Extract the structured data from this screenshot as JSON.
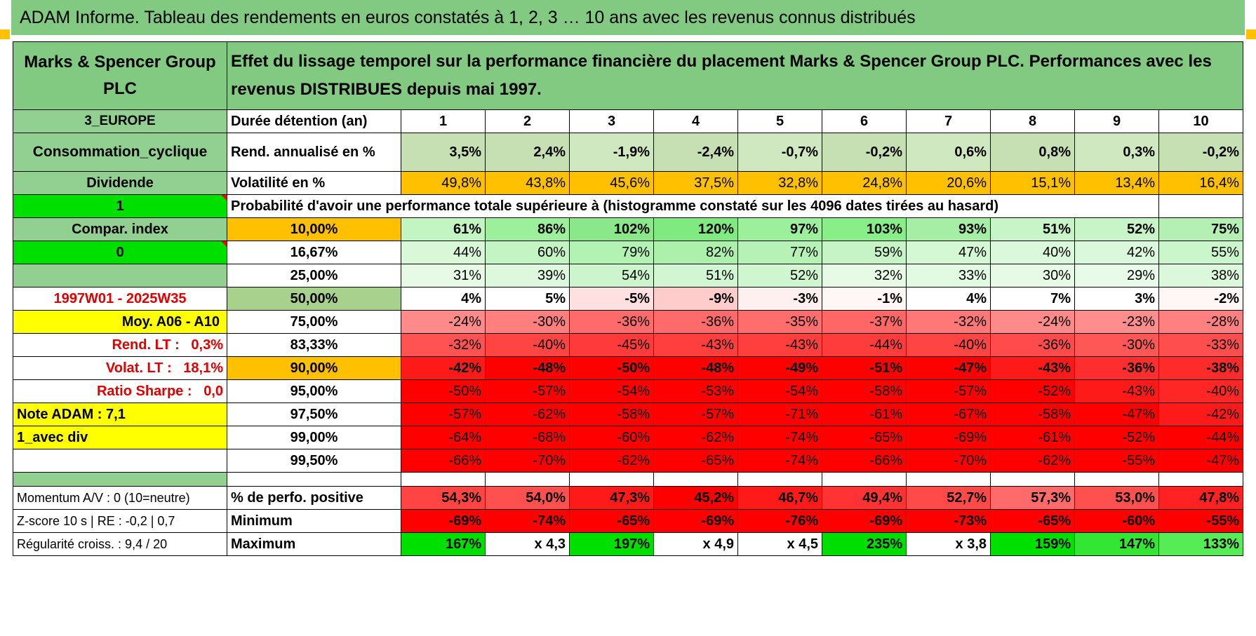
{
  "title": "ADAM Informe. Tableau des rendements en euros constatés à 1, 2, 3 … 10 ans avec les revenus connus distribués",
  "colors": {
    "header_green": "#82c982",
    "bright_green": "#00e000",
    "yellow": "#ffff00",
    "orange": "#ffc000",
    "red_text": "#e00000"
  },
  "header": {
    "company": "Marks & Spencer Group PLC",
    "description": "Effet du lissage temporel sur la performance financière du placement Marks & Spencer Group PLC. Performances avec les revenus DISTRIBUES depuis mai 1997."
  },
  "side": {
    "region": "3_EUROPE",
    "sector": "Consommation_cyclique",
    "income_type": "Dividende",
    "flag1": "1",
    "compare_index": "Compar. index",
    "flag2": "0",
    "period": "1997W01 - 2025W35",
    "moy": "Moy. A06 - A10",
    "rend_lt_label": "Rend. LT :",
    "rend_lt_value": "0,3%",
    "volat_lt_label": "Volat. LT :",
    "volat_lt_value": "18,1%",
    "sharpe_label": "Ratio Sharpe :",
    "sharpe_value": "0,0",
    "note": "Note ADAM : 7,1",
    "avec_div": "1_avec div",
    "momentum": "Momentum A/V : 0 (10=neutre)",
    "zscore": "Z-score 10 s | RE : -0,2 | 0,7",
    "regularite": "Régularité croiss. : 9,4 / 20"
  },
  "metrics": {
    "duration_label": "Durée détention (an)",
    "years": [
      "1",
      "2",
      "3",
      "4",
      "5",
      "6",
      "7",
      "8",
      "9",
      "10"
    ],
    "rend_label": "Rend. annualisé en %",
    "rend": [
      "3,5%",
      "2,4%",
      "-1,9%",
      "-2,4%",
      "-0,7%",
      "-0,2%",
      "0,6%",
      "0,8%",
      "0,3%",
      "-0,2%"
    ],
    "vol_label": "Volatilité en %",
    "vol": [
      "49,8%",
      "43,8%",
      "45,6%",
      "37,5%",
      "32,8%",
      "24,8%",
      "20,6%",
      "15,1%",
      "13,4%",
      "16,4%"
    ],
    "prob_label": "Probabilité d'avoir une performance totale supérieure à (histogramme constaté sur les 4096 dates tirées au hasard)"
  },
  "probabilities": [
    {
      "level": "10,00%",
      "values": [
        "61%",
        "86%",
        "102%",
        "120%",
        "97%",
        "103%",
        "93%",
        "51%",
        "52%",
        "75%"
      ]
    },
    {
      "level": "16,67%",
      "values": [
        "44%",
        "60%",
        "79%",
        "82%",
        "77%",
        "59%",
        "47%",
        "40%",
        "42%",
        "55%"
      ]
    },
    {
      "level": "25,00%",
      "values": [
        "31%",
        "39%",
        "54%",
        "51%",
        "52%",
        "32%",
        "33%",
        "30%",
        "29%",
        "38%"
      ]
    },
    {
      "level": "50,00%",
      "values": [
        "4%",
        "5%",
        "-5%",
        "-9%",
        "-3%",
        "-1%",
        "4%",
        "7%",
        "3%",
        "-2%"
      ]
    },
    {
      "level": "75,00%",
      "values": [
        "-24%",
        "-30%",
        "-36%",
        "-36%",
        "-35%",
        "-37%",
        "-32%",
        "-24%",
        "-23%",
        "-28%"
      ]
    },
    {
      "level": "83,33%",
      "values": [
        "-32%",
        "-40%",
        "-45%",
        "-43%",
        "-43%",
        "-44%",
        "-40%",
        "-36%",
        "-30%",
        "-33%"
      ]
    },
    {
      "level": "90,00%",
      "values": [
        "-42%",
        "-48%",
        "-50%",
        "-48%",
        "-49%",
        "-51%",
        "-47%",
        "-43%",
        "-36%",
        "-38%"
      ]
    },
    {
      "level": "95,00%",
      "values": [
        "-50%",
        "-57%",
        "-54%",
        "-53%",
        "-54%",
        "-58%",
        "-57%",
        "-52%",
        "-43%",
        "-40%"
      ]
    },
    {
      "level": "97,50%",
      "values": [
        "-57%",
        "-62%",
        "-58%",
        "-57%",
        "-71%",
        "-61%",
        "-67%",
        "-58%",
        "-47%",
        "-42%"
      ]
    },
    {
      "level": "99,00%",
      "values": [
        "-64%",
        "-68%",
        "-60%",
        "-62%",
        "-74%",
        "-65%",
        "-69%",
        "-61%",
        "-52%",
        "-44%"
      ]
    },
    {
      "level": "99,50%",
      "values": [
        "-66%",
        "-70%",
        "-62%",
        "-65%",
        "-74%",
        "-66%",
        "-70%",
        "-62%",
        "-55%",
        "-47%"
      ]
    }
  ],
  "summary": {
    "positive_label": "% de perfo. positive",
    "positive": [
      "54,3%",
      "54,0%",
      "47,3%",
      "45,2%",
      "46,7%",
      "49,4%",
      "52,7%",
      "57,3%",
      "53,0%",
      "47,8%"
    ],
    "min_label": "Minimum",
    "min": [
      "-69%",
      "-74%",
      "-65%",
      "-69%",
      "-76%",
      "-69%",
      "-73%",
      "-65%",
      "-60%",
      "-55%"
    ],
    "max_label": "Maximum",
    "max": [
      "167%",
      "x 4,3",
      "197%",
      "x 4,9",
      "x 4,5",
      "235%",
      "x 3,8",
      "159%",
      "147%",
      "133%"
    ]
  }
}
